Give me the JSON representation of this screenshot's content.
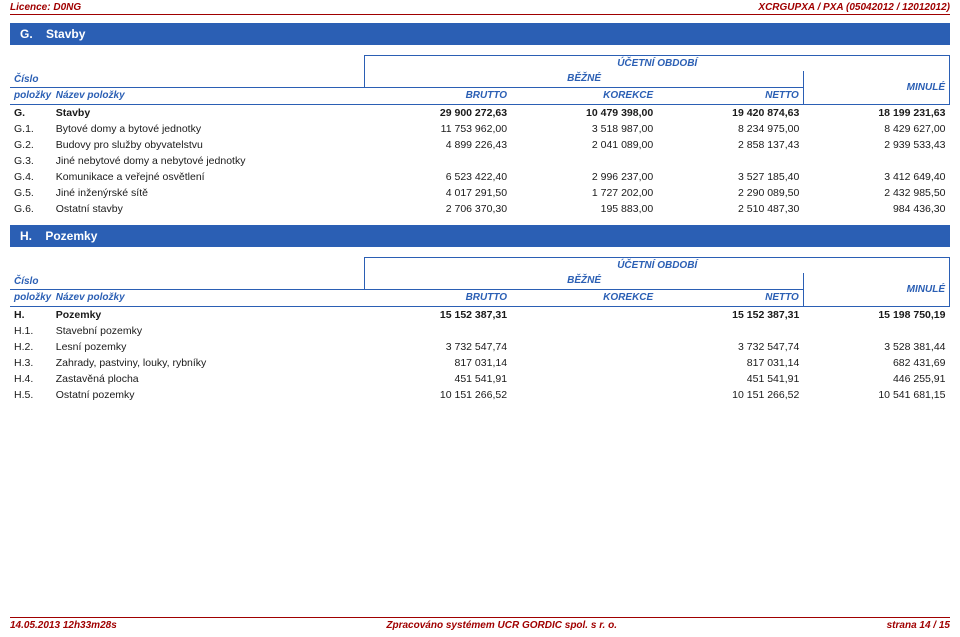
{
  "top": {
    "licence": "Licence: D0NG",
    "doc_id": "XCRGUPXA / PXA (05042012 / 12012012)"
  },
  "sections": {
    "G": {
      "code": "G.",
      "title": "Stavby"
    },
    "H": {
      "code": "H.",
      "title": "Pozemky"
    }
  },
  "table_header": {
    "period": "ÚČETNÍ OBDOBÍ",
    "cislo": "Číslo",
    "polozky": "položky",
    "nazev": "Název položky",
    "bezne": "BĚŽNÉ",
    "minule": "MINULÉ",
    "brutto": "BRUTTO",
    "korekce": "KOREKCE",
    "netto": "NETTO"
  },
  "styling": {
    "header_bg": "#2b5fb4",
    "header_fg": "#ffffff",
    "accent": "#a00000",
    "th_color": "#2b5fb4",
    "body_fontsize": 10.5,
    "th_fontsize": 10
  },
  "g_rows": [
    {
      "code": "G.",
      "name": "Stavby",
      "brutto": "29 900 272,63",
      "korekce": "10 479 398,00",
      "netto": "19 420 874,63",
      "minule": "18 199 231,63",
      "bold": true
    },
    {
      "code": "G.1.",
      "name": "Bytové domy a bytové jednotky",
      "brutto": "11 753 962,00",
      "korekce": "3 518 987,00",
      "netto": "8 234 975,00",
      "minule": "8 429 627,00",
      "bold": false
    },
    {
      "code": "G.2.",
      "name": "Budovy pro služby obyvatelstvu",
      "brutto": "4 899 226,43",
      "korekce": "2 041 089,00",
      "netto": "2 858 137,43",
      "minule": "2 939 533,43",
      "bold": false
    },
    {
      "code": "G.3.",
      "name": "Jiné nebytové domy a nebytové jednotky",
      "brutto": "",
      "korekce": "",
      "netto": "",
      "minule": "",
      "bold": false
    },
    {
      "code": "G.4.",
      "name": "Komunikace a veřejné osvětlení",
      "brutto": "6 523 422,40",
      "korekce": "2 996 237,00",
      "netto": "3 527 185,40",
      "minule": "3 412 649,40",
      "bold": false
    },
    {
      "code": "G.5.",
      "name": "Jiné inženýrské sítě",
      "brutto": "4 017 291,50",
      "korekce": "1 727 202,00",
      "netto": "2 290 089,50",
      "minule": "2 432 985,50",
      "bold": false
    },
    {
      "code": "G.6.",
      "name": "Ostatní stavby",
      "brutto": "2 706 370,30",
      "korekce": "195 883,00",
      "netto": "2 510 487,30",
      "minule": "984 436,30",
      "bold": false
    }
  ],
  "h_rows": [
    {
      "code": "H.",
      "name": "Pozemky",
      "brutto": "15 152 387,31",
      "korekce": "",
      "netto": "15 152 387,31",
      "minule": "15 198 750,19",
      "bold": true
    },
    {
      "code": "H.1.",
      "name": "Stavební pozemky",
      "brutto": "",
      "korekce": "",
      "netto": "",
      "minule": "",
      "bold": false
    },
    {
      "code": "H.2.",
      "name": "Lesní pozemky",
      "brutto": "3 732 547,74",
      "korekce": "",
      "netto": "3 732 547,74",
      "minule": "3 528 381,44",
      "bold": false
    },
    {
      "code": "H.3.",
      "name": "Zahrady, pastviny, louky, rybníky",
      "brutto": "817 031,14",
      "korekce": "",
      "netto": "817 031,14",
      "minule": "682 431,69",
      "bold": false
    },
    {
      "code": "H.4.",
      "name": "Zastavěná plocha",
      "brutto": "451 541,91",
      "korekce": "",
      "netto": "451 541,91",
      "minule": "446 255,91",
      "bold": false
    },
    {
      "code": "H.5.",
      "name": "Ostatní pozemky",
      "brutto": "10 151 266,52",
      "korekce": "",
      "netto": "10 151 266,52",
      "minule": "10 541 681,15",
      "bold": false
    }
  ],
  "footer": {
    "timestamp": "14.05.2013 12h33m28s",
    "generator": "Zpracováno systémem  UCR GORDIC spol. s  r.  o.",
    "page": "strana 14 / 15"
  }
}
